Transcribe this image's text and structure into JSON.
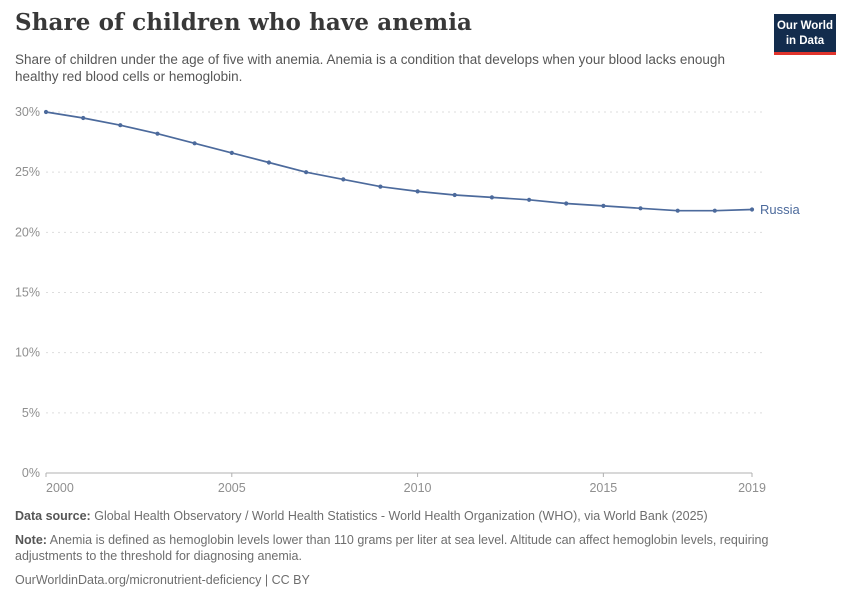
{
  "header": {
    "title": "Share of children who have anemia",
    "subtitle": "Share of children under the age of five with anemia. Anemia is a condition that develops when your blood lacks enough healthy red blood cells or hemoglobin.",
    "logo": {
      "line1": "Our World",
      "line2": "in Data"
    }
  },
  "colors": {
    "logo_navy": "#132c4d",
    "logo_red_stripe": "#e0342c",
    "series_blue": "#4c6a9c",
    "gridline": "#dddddd",
    "axis_line": "#b0b0b0",
    "tick_label": "#8f8f8f",
    "title_text": "#383838",
    "subtitle_text": "#575757",
    "footer_text": "#6e6e6e"
  },
  "chart_data": {
    "type": "line",
    "title": "Share of children who have anemia",
    "x": [
      2000,
      2001,
      2002,
      2003,
      2004,
      2005,
      2006,
      2007,
      2008,
      2009,
      2010,
      2011,
      2012,
      2013,
      2014,
      2015,
      2016,
      2017,
      2018,
      2019
    ],
    "series": [
      {
        "name": "Russia",
        "color": "#4c6a9c",
        "values": [
          30.0,
          29.5,
          28.9,
          28.2,
          27.4,
          26.6,
          25.8,
          25.0,
          24.4,
          23.8,
          23.4,
          23.1,
          22.9,
          22.7,
          22.4,
          22.2,
          22.0,
          21.8,
          21.8,
          21.9
        ]
      }
    ],
    "xlim": [
      2000,
      2019
    ],
    "ylim": [
      0,
      30
    ],
    "x_tick_values": [
      2000,
      2005,
      2010,
      2015,
      2019
    ],
    "x_tick_labels": [
      "2000",
      "2005",
      "2010",
      "2015",
      "2019"
    ],
    "y_tick_values": [
      0,
      5,
      10,
      15,
      20,
      25,
      30
    ],
    "y_tick_labels": [
      "0%",
      "5%",
      "10%",
      "15%",
      "20%",
      "25%",
      "30%"
    ],
    "grid": "horizontal-dashed",
    "legend_position": "line-end-label",
    "markers": true
  },
  "footer": {
    "data_source_label": "Data source:",
    "data_source_text": "Global Health Observatory / World Health Statistics - World Health Organization (WHO), via World Bank (2025)",
    "note_label": "Note:",
    "note_text": "Anemia is defined as hemoglobin levels lower than 110 grams per liter at sea level. Altitude can affect hemoglobin levels, requiring adjustments to the threshold for diagnosing anemia.",
    "url_text": "OurWorldinData.org/micronutrient-deficiency",
    "separator": "|",
    "license_text": "CC BY"
  }
}
